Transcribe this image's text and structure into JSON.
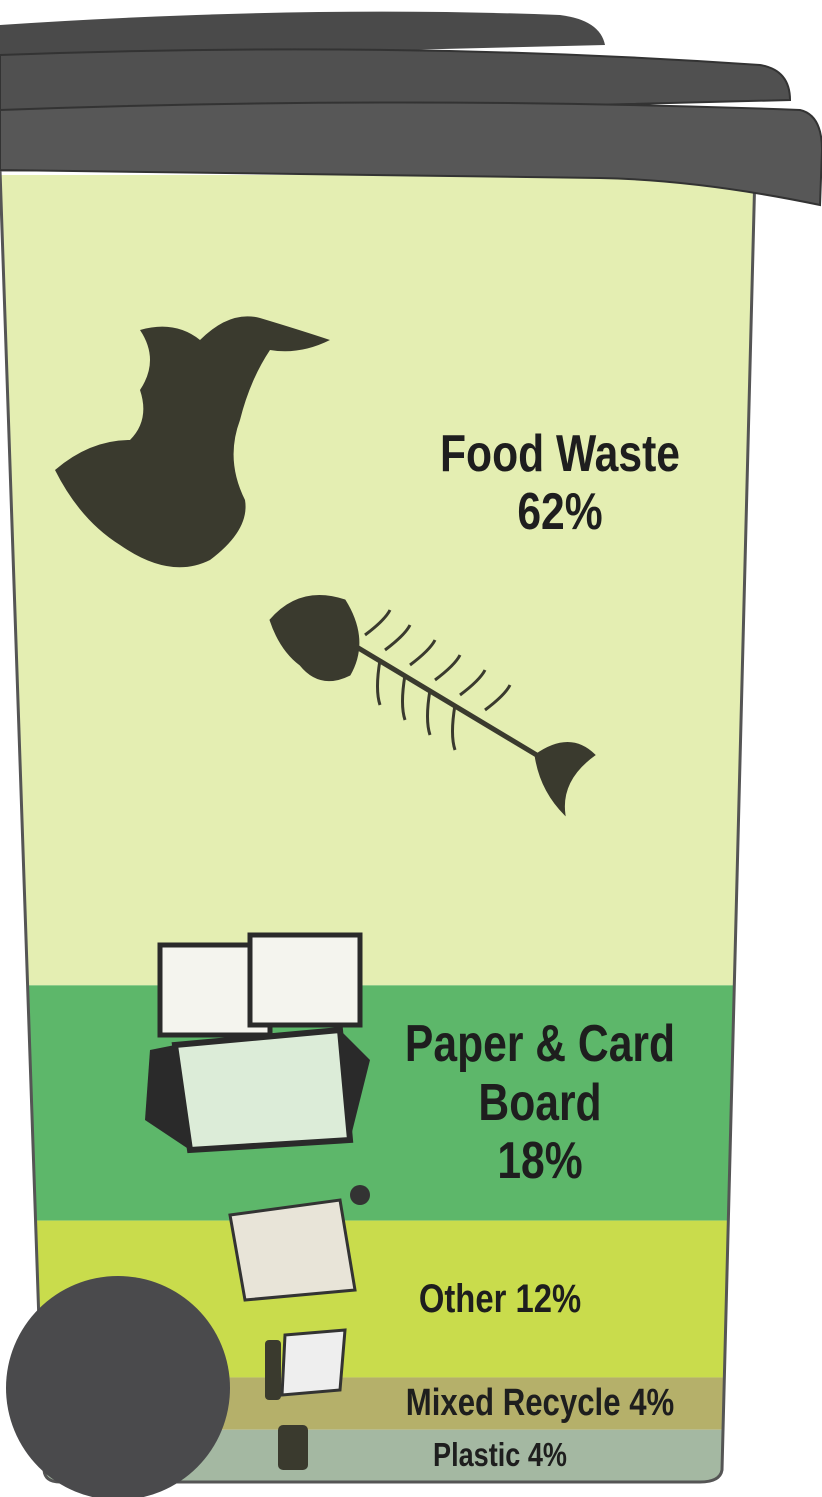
{
  "chart_data": {
    "type": "bar",
    "categories": [
      "Food Waste",
      "Paper & Card Board",
      "Other",
      "Mixed Recycle",
      "Plastic"
    ],
    "values": [
      62,
      18,
      12,
      4,
      4
    ],
    "value_labels": [
      "62%",
      "18%",
      "12%",
      "4%",
      "4%"
    ],
    "colors": [
      "#e4eeb2",
      "#5db76a",
      "#c9dc4c",
      "#b5b06a",
      "#a4b8a2"
    ]
  }
}
